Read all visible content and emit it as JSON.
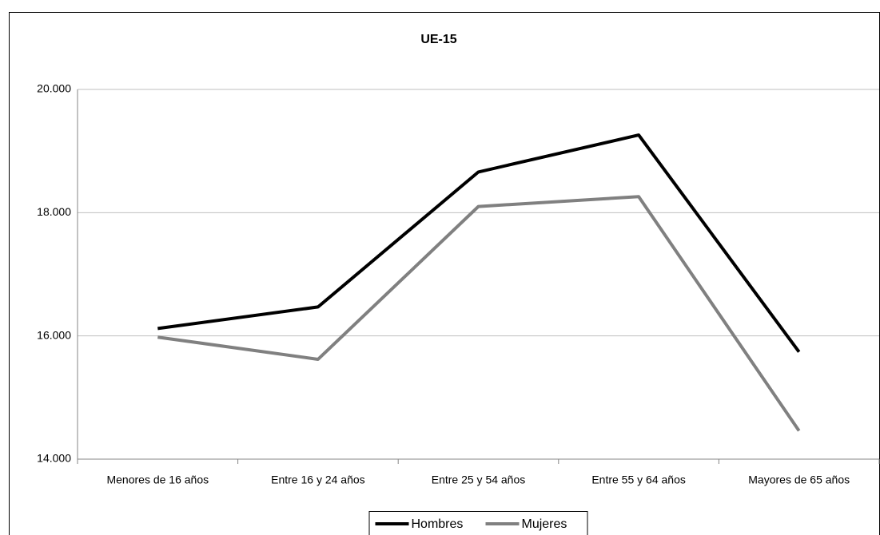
{
  "chart_data": {
    "type": "line",
    "title": "UE-15",
    "categories": [
      "Menores de 16 años",
      "Entre 16 y 24 años",
      "Entre 25 y 54 años",
      "Entre 55 y 64 años",
      "Mayores de 65 años"
    ],
    "series": [
      {
        "name": "Hombres",
        "color": "#000000",
        "values": [
          16120,
          16470,
          18660,
          19260,
          15740
        ]
      },
      {
        "name": "Mujeres",
        "color": "#808080",
        "values": [
          15980,
          15620,
          18100,
          18260,
          14460
        ]
      }
    ],
    "ylim": [
      14000,
      20000
    ],
    "yticks": [
      {
        "value": 14000,
        "label": "14.000"
      },
      {
        "value": 16000,
        "label": "16.000"
      },
      {
        "value": 18000,
        "label": "18.000"
      },
      {
        "value": 20000,
        "label": "20.000"
      }
    ],
    "grid": true,
    "legend": "bottom"
  }
}
